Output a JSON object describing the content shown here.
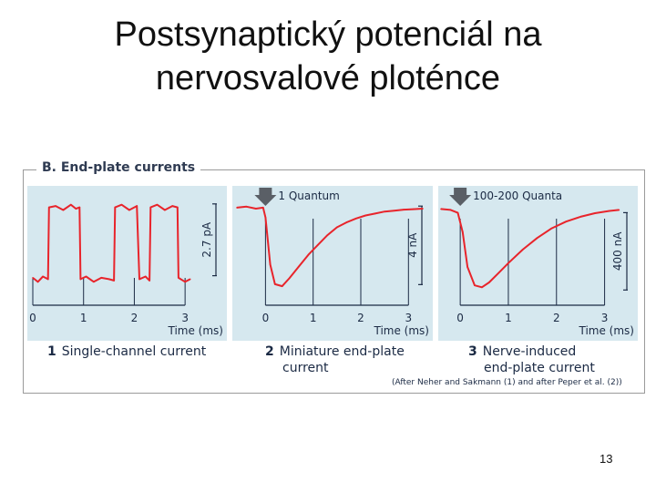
{
  "slide": {
    "title_line1": "Postsynaptický potenciál na",
    "title_line2": "nervosvalové ploténce",
    "page_number": "13"
  },
  "figure": {
    "heading": "B. End-plate currents",
    "source_note": "(After Neher and Sakmann (1) and after Peper et al. (2))"
  },
  "colors": {
    "trace": "#e8242b",
    "panel_bg": "#d6e8ef",
    "text": "#1b2a44",
    "arrow": "#5a5f66"
  },
  "chart_data": [
    {
      "type": "line",
      "panel_number": "1",
      "caption_line1": "Single-channel current",
      "caption_line2": "",
      "marker": "",
      "xlabel": "Time (ms)",
      "x_ticks": [
        "0",
        "1",
        "2",
        "3"
      ],
      "xlim": [
        0,
        3.5
      ],
      "scale_bar_label": "2.7 pA",
      "scale_bar_value": 2.7,
      "ylim": [
        -0.5,
        3.2
      ],
      "series": [
        {
          "x": [
            0,
            0.1,
            0.2,
            0.3,
            0.32,
            0.45,
            0.6,
            0.75,
            0.85,
            0.92,
            0.94,
            1.05,
            1.2,
            1.35,
            1.5,
            1.6,
            1.62,
            1.75,
            1.9,
            2.05,
            2.1,
            2.22,
            2.3,
            2.32,
            2.45,
            2.6,
            2.75,
            2.85,
            2.87,
            3.0,
            3.1
          ],
          "y": [
            0.05,
            -0.1,
            0.1,
            0.0,
            2.7,
            2.75,
            2.6,
            2.8,
            2.65,
            2.7,
            0.0,
            0.1,
            -0.1,
            0.05,
            0.0,
            -0.05,
            2.7,
            2.8,
            2.6,
            2.75,
            0.0,
            0.1,
            -0.05,
            2.7,
            2.8,
            2.6,
            2.75,
            2.7,
            0.05,
            -0.1,
            0.0
          ]
        }
      ]
    },
    {
      "type": "line",
      "panel_number": "2",
      "caption_line1": "Miniature end-plate",
      "caption_line2": "current",
      "marker": "1 Quantum",
      "xlabel": "Time (ms)",
      "x_ticks": [
        "0",
        "1",
        "2",
        "3"
      ],
      "xlim": [
        -0.6,
        3.3
      ],
      "scale_bar_label": "4 nA",
      "scale_bar_value": 4,
      "ylim": [
        -4.6,
        0.6
      ],
      "series": [
        {
          "x": [
            -0.6,
            -0.4,
            -0.2,
            -0.05,
            0.0,
            0.1,
            0.2,
            0.35,
            0.5,
            0.7,
            0.9,
            1.1,
            1.3,
            1.5,
            1.7,
            1.9,
            2.1,
            2.3,
            2.5,
            2.7,
            2.9,
            3.1,
            3.3
          ],
          "y": [
            0.0,
            0.05,
            -0.05,
            0.0,
            -0.5,
            -2.9,
            -3.9,
            -4.0,
            -3.6,
            -3.0,
            -2.4,
            -1.9,
            -1.4,
            -1.0,
            -0.75,
            -0.55,
            -0.4,
            -0.3,
            -0.2,
            -0.15,
            -0.1,
            -0.08,
            -0.05
          ]
        }
      ]
    },
    {
      "type": "line",
      "panel_number": "3",
      "caption_line1": "Nerve-induced",
      "caption_line2": "end-plate current",
      "marker": "100-200 Quanta",
      "xlabel": "Time (ms)",
      "x_ticks": [
        "0",
        "1",
        "2",
        "3"
      ],
      "xlim": [
        -0.4,
        3.5
      ],
      "scale_bar_label": "400 nA",
      "scale_bar_value": 400,
      "ylim": [
        -460,
        30
      ],
      "series": [
        {
          "x": [
            -0.4,
            -0.2,
            -0.05,
            0.05,
            0.15,
            0.3,
            0.45,
            0.6,
            0.8,
            1.0,
            1.3,
            1.6,
            1.9,
            2.2,
            2.5,
            2.8,
            3.1,
            3.3
          ],
          "y": [
            0,
            -5,
            -20,
            -120,
            -300,
            -395,
            -405,
            -380,
            -330,
            -280,
            -210,
            -150,
            -100,
            -65,
            -40,
            -22,
            -10,
            -5
          ]
        }
      ]
    }
  ]
}
